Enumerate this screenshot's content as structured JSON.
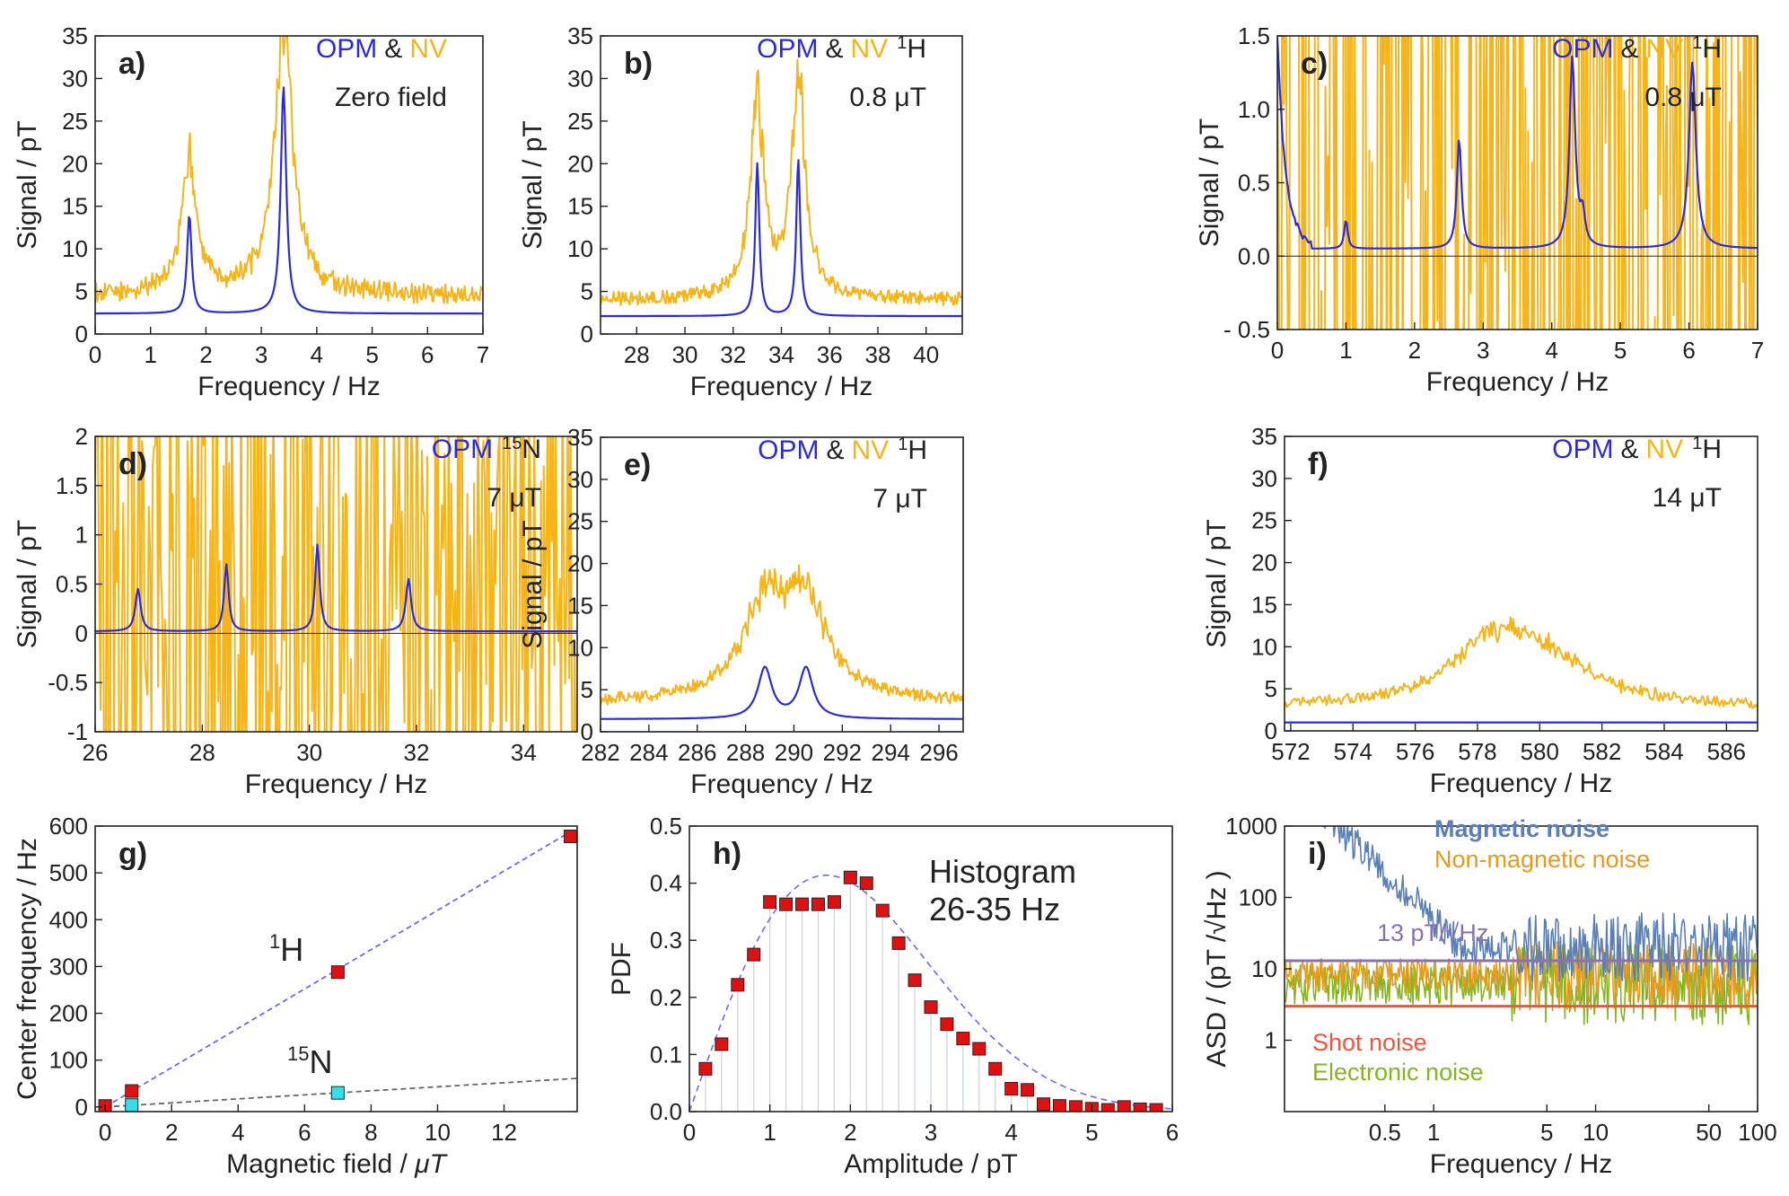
{
  "colors": {
    "opm": "#2b2bdc",
    "nv": "#f6b418",
    "marker": "#e01010",
    "n15": "#33e0e8",
    "grid": "#c8d2e8",
    "fit": "#6b6bf0",
    "mag": "#5a7fb5",
    "nonmag": "#e69a1e",
    "elec": "#84b522",
    "shot": "#f0543a",
    "line13": "#8a70b5"
  },
  "chart_data": [
    {
      "id": "a",
      "type": "line",
      "panel_label": "a)",
      "legend": {
        "opm": "OPM",
        "amp": "&",
        "nv": "NV",
        "extra_sup": "",
        "extra": ""
      },
      "note": "Zero field",
      "xlabel": "Frequency / Hz",
      "ylabel": "Signal / pT",
      "xlim": [
        0,
        7
      ],
      "ylim": [
        0,
        35
      ],
      "xticks": [
        0,
        1,
        2,
        3,
        4,
        5,
        6,
        7
      ],
      "yticks": [
        0,
        5,
        10,
        15,
        20,
        25,
        30,
        35
      ],
      "peaks": [
        {
          "x": 1.7,
          "opm": 14,
          "nv": 20.5,
          "w": 0.05
        },
        {
          "x": 3.4,
          "opm": 29,
          "nv": 36,
          "w": 0.06
        }
      ],
      "baseline": {
        "opm": 2.4,
        "nv": 4.5,
        "nv_noise": 1.2
      },
      "series": [
        {
          "name": "OPM"
        },
        {
          "name": "NV"
        }
      ]
    },
    {
      "id": "b",
      "type": "line",
      "panel_label": "b)",
      "legend": {
        "opm": "OPM",
        "amp": "&",
        "nv": "NV",
        "extra_sup": "1",
        "extra": "H"
      },
      "note": "0.8  μT",
      "xlabel": "Frequency / Hz",
      "ylabel": "Signal / pT",
      "xlim": [
        26.5,
        41.5
      ],
      "ylim": [
        0,
        35
      ],
      "xticks": [
        28,
        30,
        32,
        34,
        36,
        38,
        40
      ],
      "yticks": [
        0,
        5,
        10,
        15,
        20,
        25,
        30,
        35
      ],
      "peaks": [
        {
          "x": 33.0,
          "opm": 20,
          "nv": 27.5,
          "w": 0.1
        },
        {
          "x": 34.7,
          "opm": 20.5,
          "nv": 30.5,
          "w": 0.1
        }
      ],
      "baseline": {
        "opm": 2.1,
        "nv": 4.0,
        "nv_noise": 0.8
      },
      "series": [
        {
          "name": "OPM"
        },
        {
          "name": "NV"
        }
      ]
    },
    {
      "id": "c",
      "type": "line",
      "panel_label": "c)",
      "legend": {
        "opm": "OPM",
        "amp": "&",
        "nv": "NV",
        "extra_sup": "1",
        "extra": "H"
      },
      "note": "0.8  μT",
      "xlabel": "Frequency / Hz",
      "ylabel": "Signal / pT",
      "xlim": [
        0,
        7
      ],
      "ylim": [
        -0.5,
        1.5
      ],
      "xticks": [
        0,
        1,
        2,
        3,
        4,
        5,
        6,
        7
      ],
      "yticks": [
        -0.5,
        0.0,
        0.5,
        1.0,
        1.5
      ],
      "ytick_labels": [
        "- 0.5",
        "0.0",
        "0.5",
        "1.0",
        "1.5"
      ],
      "peaks": [
        {
          "x": 1.0,
          "opm": 0.25,
          "w": 0.03
        },
        {
          "x": 2.65,
          "opm": 0.8,
          "w": 0.04
        },
        {
          "x": 4.3,
          "opm": 1.35,
          "w": 0.05
        },
        {
          "x": 4.45,
          "opm": 0.25,
          "w": 0.04
        },
        {
          "x": 6.05,
          "opm": 1.32,
          "w": 0.06
        }
      ],
      "baseline": {
        "opm": 0.05,
        "nv": 0.5,
        "nv_noise": 2.2
      },
      "zero_line": true,
      "series": [
        {
          "name": "OPM"
        },
        {
          "name": "NV"
        }
      ]
    },
    {
      "id": "d",
      "type": "line",
      "panel_label": "d)",
      "legend": {
        "opm": "OPM",
        "amp": "",
        "nv": "",
        "extra_sup": "15",
        "extra": "N"
      },
      "note": "7  μT",
      "xlabel": "Frequency / Hz",
      "ylabel": "Signal / pT",
      "xlim": [
        26,
        35
      ],
      "ylim": [
        -1.0,
        2.0
      ],
      "xticks": [
        26,
        28,
        30,
        32,
        34
      ],
      "yticks": [
        -1.0,
        -0.5,
        0.0,
        0.5,
        1.0,
        1.5,
        2.0
      ],
      "peaks": [
        {
          "x": 26.8,
          "opm": 0.45,
          "w": 0.06
        },
        {
          "x": 28.45,
          "opm": 0.7,
          "w": 0.05
        },
        {
          "x": 30.15,
          "opm": 0.9,
          "w": 0.05
        },
        {
          "x": 31.85,
          "opm": 0.55,
          "w": 0.06
        }
      ],
      "baseline": {
        "opm": 0.02,
        "nv": 0.3,
        "nv_noise": 1.4
      },
      "zero_line": true,
      "series": [
        {
          "name": "OPM"
        },
        {
          "name": "NV"
        }
      ]
    },
    {
      "id": "e",
      "type": "line",
      "panel_label": "e)",
      "legend": {
        "opm": "OPM",
        "amp": "&",
        "nv": "NV",
        "extra_sup": "1",
        "extra": "H"
      },
      "note": "7  μT",
      "xlabel": "Frequency / Hz",
      "ylabel": "Signal / pT",
      "xlim": [
        282,
        297
      ],
      "ylim": [
        0,
        35
      ],
      "xticks": [
        282,
        284,
        286,
        288,
        290,
        292,
        294,
        296
      ],
      "yticks": [
        0,
        5,
        10,
        15,
        20,
        25,
        30,
        35
      ],
      "peaks": [
        {
          "x": 288.8,
          "opm": 7.5,
          "nv": 14,
          "w": 0.35
        },
        {
          "x": 290.5,
          "opm": 7.5,
          "nv": 14,
          "w": 0.35
        }
      ],
      "baseline": {
        "opm": 1.5,
        "nv": 3.3,
        "nv_noise": 0.7
      },
      "series": [
        {
          "name": "OPM"
        },
        {
          "name": "NV"
        }
      ]
    },
    {
      "id": "f",
      "type": "line",
      "panel_label": "f)",
      "legend": {
        "opm": "OPM",
        "amp": "&",
        "nv": "NV",
        "extra_sup": "1",
        "extra": "H"
      },
      "note": "14  μT",
      "xlabel": "Frequency / Hz",
      "ylabel": "Signal / pT",
      "xlim": [
        571.8,
        587
      ],
      "ylim": [
        0,
        35
      ],
      "xticks": [
        572,
        574,
        576,
        578,
        580,
        582,
        584,
        586
      ],
      "yticks": [
        0,
        5,
        10,
        15,
        20,
        25,
        30,
        35
      ],
      "peaks": [
        {
          "x": 578.4,
          "nv": 8.5,
          "w": 0.5
        },
        {
          "x": 580.0,
          "nv": 8.0,
          "w": 0.6
        }
      ],
      "baseline": {
        "opm": 1.0,
        "nv": 2.5,
        "nv_noise": 0.6
      },
      "series": [
        {
          "name": "OPM"
        },
        {
          "name": "NV"
        }
      ]
    },
    {
      "id": "g",
      "type": "scatter",
      "panel_label": "g)",
      "xlabel_main": "Magnetic field / ",
      "xlabel_unit": "μT",
      "ylabel": "Center frequency / Hz",
      "xlim": [
        -0.3,
        14.2
      ],
      "ylim": [
        -10,
        600
      ],
      "xticks": [
        0,
        2,
        4,
        6,
        8,
        10,
        12
      ],
      "yticks": [
        0,
        100,
        200,
        300,
        400,
        500,
        600
      ],
      "series": [
        {
          "name": "1H",
          "label_sup": "1",
          "label": "H",
          "x": [
            0.0,
            0.8,
            7.0,
            14.0
          ],
          "y": [
            2,
            34,
            288,
            578
          ],
          "fit_slope": 42.0
        },
        {
          "name": "15N",
          "label_sup": "15",
          "label": "N",
          "x": [
            0.8,
            7.0
          ],
          "y": [
            4,
            30
          ],
          "fit_slope": 4.3
        }
      ]
    },
    {
      "id": "h",
      "type": "bar",
      "panel_label": "h)",
      "note_lines": [
        "Histogram",
        "26-35 Hz"
      ],
      "xlabel": "Amplitude / pT",
      "ylabel": "PDF",
      "xlim": [
        0,
        6
      ],
      "ylim": [
        0,
        0.5
      ],
      "xticks": [
        0,
        1,
        2,
        3,
        4,
        5,
        6
      ],
      "yticks": [
        0.0,
        0.1,
        0.2,
        0.3,
        0.4,
        0.5
      ],
      "ytick_labels": [
        "0.0",
        "0.1",
        "0.2",
        "0.3",
        "0.4",
        "0.5"
      ],
      "x": [
        0.2,
        0.4,
        0.6,
        0.8,
        1.0,
        1.2,
        1.4,
        1.6,
        1.8,
        2.0,
        2.2,
        2.4,
        2.6,
        2.8,
        3.0,
        3.2,
        3.4,
        3.6,
        3.8,
        4.0,
        4.2,
        4.4,
        4.6,
        4.8,
        5.0,
        5.2,
        5.4,
        5.6,
        5.8
      ],
      "values": [
        0.075,
        0.118,
        0.222,
        0.275,
        0.367,
        0.363,
        0.363,
        0.363,
        0.367,
        0.41,
        0.4,
        0.352,
        0.295,
        0.23,
        0.183,
        0.153,
        0.128,
        0.11,
        0.075,
        0.04,
        0.038,
        0.013,
        0.01,
        0.008,
        0.005,
        0.003,
        0.008,
        0.004,
        0.003
      ],
      "fit": "Rayleigh"
    },
    {
      "id": "i",
      "type": "line",
      "panel_label": "i)",
      "xlabel": "Frequency / Hz",
      "ylabel": "ASD / (pT /√Hz )",
      "xscale": "log",
      "yscale": "log",
      "xlim": [
        0.12,
        100
      ],
      "ylim": [
        0.1,
        1000
      ],
      "xticks": [
        0.5,
        1,
        5,
        10,
        50,
        100
      ],
      "xtick_labels": [
        "0.5",
        "1",
        "5",
        "10",
        "50",
        "100"
      ],
      "yticks": [
        1,
        10,
        100,
        1000
      ],
      "ytick_labels": [
        "1",
        "10",
        "100",
        "1000"
      ],
      "series": [
        {
          "name": "Magnetic noise",
          "level": 20
        },
        {
          "name": "Non-magnetic noise",
          "level": 8
        },
        {
          "name": "Electronic noise",
          "level": 6
        },
        {
          "name": "Shot noise",
          "level": 3.0
        },
        {
          "name": "13 pT/√Hz",
          "level": 13
        }
      ]
    }
  ]
}
